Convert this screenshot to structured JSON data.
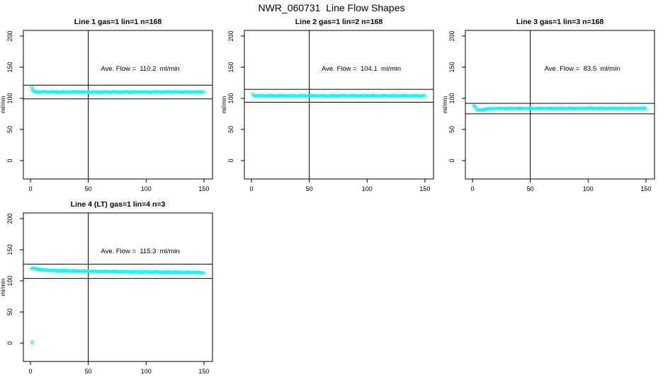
{
  "page_title": "NWR_060731  Line Flow Shapes",
  "colors": {
    "data_points": "#00FFFF",
    "axis": "#000000",
    "background": "#FFFFFF"
  },
  "layout_hint": {
    "grid_rows": 2,
    "grid_cols": 3,
    "filled_panels": 4,
    "legend": "none",
    "gridlines": false
  },
  "chart_data": [
    {
      "type": "scatter",
      "title": "Line 1 gas=1 lin=1 n=168",
      "annotation": "Ave. Flow =  110.2  ml/min",
      "ave_flow_ml_min": 110.2,
      "n": 168,
      "ylabel": "ml/min",
      "xticks": [
        0,
        50,
        100,
        150
      ],
      "yticks": [
        0,
        50,
        100,
        150,
        200
      ],
      "xlim": [
        -6,
        156
      ],
      "ylim": [
        -30,
        207
      ],
      "vline_x": 50,
      "hlines": [
        121.2,
        99.2
      ],
      "marker": "open-circle",
      "color": "#00FFFF",
      "noise": 0.7,
      "x_step": 0.9,
      "anchors": [
        [
          1,
          117.5
        ],
        [
          2,
          113
        ],
        [
          3,
          111
        ],
        [
          5,
          110.2
        ],
        [
          10,
          110.3
        ],
        [
          20,
          110.2
        ],
        [
          30,
          110.0
        ],
        [
          40,
          110.3
        ],
        [
          50,
          110.1
        ],
        [
          60,
          110.0
        ],
        [
          70,
          110.2
        ],
        [
          80,
          110.1
        ],
        [
          90,
          110.2
        ],
        [
          100,
          110.1
        ],
        [
          110,
          110.2
        ],
        [
          120,
          110.3
        ],
        [
          130,
          110.2
        ],
        [
          140,
          110.2
        ],
        [
          150,
          110.3
        ]
      ],
      "extra_points": []
    },
    {
      "type": "scatter",
      "title": "Line 2 gas=1 lin=2 n=168",
      "annotation": "Ave. Flow =  104.1  ml/min",
      "ave_flow_ml_min": 104.1,
      "n": 168,
      "ylabel": "ml/min",
      "xticks": [
        0,
        50,
        100,
        150
      ],
      "yticks": [
        0,
        50,
        100,
        150,
        200
      ],
      "xlim": [
        -6,
        156
      ],
      "ylim": [
        -30,
        207
      ],
      "vline_x": 50,
      "hlines": [
        114.5,
        93.7
      ],
      "marker": "open-circle",
      "color": "#00FFFF",
      "noise": 0.8,
      "x_step": 0.9,
      "anchors": [
        [
          1,
          106.5
        ],
        [
          2,
          104.8
        ],
        [
          3,
          104.3
        ],
        [
          5,
          104.1
        ],
        [
          10,
          104.1
        ],
        [
          20,
          104.2
        ],
        [
          30,
          104.1
        ],
        [
          40,
          104.0
        ],
        [
          50,
          104.1
        ],
        [
          60,
          104.0
        ],
        [
          70,
          104.1
        ],
        [
          80,
          104.0
        ],
        [
          90,
          104.1
        ],
        [
          100,
          104.1
        ],
        [
          110,
          104.0
        ],
        [
          120,
          104.1
        ],
        [
          130,
          104.1
        ],
        [
          140,
          104.0
        ],
        [
          150,
          104.1
        ]
      ],
      "extra_points": []
    },
    {
      "type": "scatter",
      "title": "Line 3 gas=1 lin=3 n=168",
      "annotation": "Ave. Flow =  83.5  ml/min",
      "ave_flow_ml_min": 83.5,
      "n": 168,
      "ylabel": "ml/min",
      "xticks": [
        0,
        50,
        100,
        150
      ],
      "yticks": [
        0,
        50,
        100,
        150,
        200
      ],
      "xlim": [
        -6,
        156
      ],
      "ylim": [
        -30,
        207
      ],
      "vline_x": 50,
      "hlines": [
        91.9,
        75.2
      ],
      "marker": "open-circle",
      "color": "#00FFFF",
      "noise": 0.6,
      "x_step": 0.9,
      "anchors": [
        [
          1,
          88.5
        ],
        [
          2,
          86.5
        ],
        [
          3,
          84.0
        ],
        [
          4,
          81.5
        ],
        [
          6,
          80.8
        ],
        [
          8,
          81.8
        ],
        [
          12,
          83.0
        ],
        [
          20,
          83.6
        ],
        [
          30,
          83.7
        ],
        [
          40,
          83.8
        ],
        [
          50,
          83.7
        ],
        [
          60,
          83.8
        ],
        [
          70,
          83.8
        ],
        [
          80,
          83.9
        ],
        [
          90,
          83.9
        ],
        [
          100,
          84.0
        ],
        [
          110,
          84.0
        ],
        [
          120,
          84.0
        ],
        [
          130,
          84.0
        ],
        [
          140,
          84.0
        ],
        [
          150,
          84.0
        ]
      ],
      "extra_points": []
    },
    {
      "type": "scatter",
      "title": "Line 4 (LT) gas=1 lin=4 n=3",
      "annotation": "Ave. Flow =  115.3  ml/min",
      "ave_flow_ml_min": 115.3,
      "n": 3,
      "ylabel": "ml/min",
      "xticks": [
        0,
        50,
        100,
        150
      ],
      "yticks": [
        0,
        50,
        100,
        150,
        200
      ],
      "xlim": [
        -6,
        156
      ],
      "ylim": [
        -30,
        207
      ],
      "vline_x": 50,
      "hlines": [
        126.8,
        103.8
      ],
      "marker": "open-circle",
      "color": "#00FFFF",
      "noise": 0.7,
      "x_step": 0.9,
      "anchors": [
        [
          1,
          119.5
        ],
        [
          3,
          120.0
        ],
        [
          6,
          119.0
        ],
        [
          10,
          118.0
        ],
        [
          15,
          117.2
        ],
        [
          20,
          116.6
        ],
        [
          30,
          116.4
        ],
        [
          40,
          115.8
        ],
        [
          50,
          115.4
        ],
        [
          60,
          115.1
        ],
        [
          70,
          114.9
        ],
        [
          80,
          114.6
        ],
        [
          90,
          114.4
        ],
        [
          100,
          114.3
        ],
        [
          110,
          114.1
        ],
        [
          120,
          113.9
        ],
        [
          130,
          113.7
        ],
        [
          140,
          113.5
        ],
        [
          150,
          113.2
        ]
      ],
      "extra_points": [
        [
          1.5,
          1
        ]
      ]
    }
  ]
}
